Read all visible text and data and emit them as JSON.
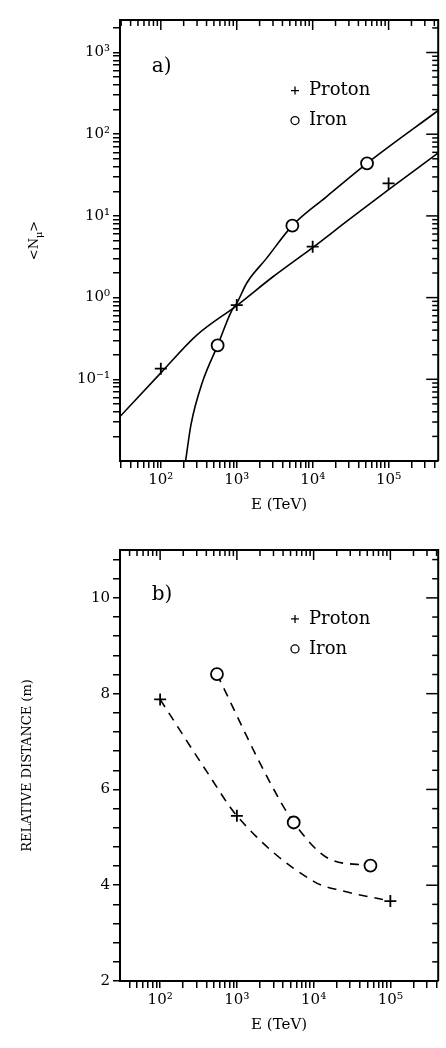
{
  "chart_data": [
    {
      "type": "scatter",
      "xlabel": "E (TeV)",
      "ylabel": "<N$_{μ}$>",
      "annotations": [
        "a)"
      ],
      "log": "xy",
      "grid": false,
      "legend": "top right",
      "xlim": [
        29,
        450000
      ],
      "ylim": [
        0.01,
        2500
      ],
      "xticks": [
        {
          "value": 30,
          "label": null
        },
        {
          "value": 40,
          "label": null
        },
        {
          "value": 50,
          "label": null
        },
        {
          "value": 60,
          "label": null
        },
        {
          "value": 70,
          "label": null
        },
        {
          "value": 80,
          "label": null
        },
        {
          "value": 90,
          "label": null
        },
        {
          "value": 100,
          "label": "10²"
        },
        {
          "value": 200,
          "label": null
        },
        {
          "value": 300,
          "label": null
        },
        {
          "value": 400,
          "label": null
        },
        {
          "value": 500,
          "label": null
        },
        {
          "value": 600,
          "label": null
        },
        {
          "value": 700,
          "label": null
        },
        {
          "value": 800,
          "label": null
        },
        {
          "value": 900,
          "label": null
        },
        {
          "value": 1000,
          "label": "10³"
        },
        {
          "value": 2000,
          "label": null
        },
        {
          "value": 3000,
          "label": null
        },
        {
          "value": 4000,
          "label": null
        },
        {
          "value": 5000,
          "label": null
        },
        {
          "value": 6000,
          "label": null
        },
        {
          "value": 7000,
          "label": null
        },
        {
          "value": 8000,
          "label": null
        },
        {
          "value": 9000,
          "label": null
        },
        {
          "value": 10000,
          "label": "10⁴"
        },
        {
          "value": 20000,
          "label": null
        },
        {
          "value": 30000,
          "label": null
        },
        {
          "value": 40000,
          "label": null
        },
        {
          "value": 50000,
          "label": null
        },
        {
          "value": 60000,
          "label": null
        },
        {
          "value": 70000,
          "label": null
        },
        {
          "value": 80000,
          "label": null
        },
        {
          "value": 90000,
          "label": null
        },
        {
          "value": 100000,
          "label": "10⁵"
        },
        {
          "value": 200000,
          "label": null
        },
        {
          "value": 300000,
          "label": null
        },
        {
          "value": 400000,
          "label": null
        }
      ],
      "yticks": [
        {
          "value": 0.02,
          "label": null
        },
        {
          "value": 0.03,
          "label": null
        },
        {
          "value": 0.04,
          "label": null
        },
        {
          "value": 0.05,
          "label": null
        },
        {
          "value": 0.06,
          "label": null
        },
        {
          "value": 0.07,
          "label": null
        },
        {
          "value": 0.08,
          "label": null
        },
        {
          "value": 0.09,
          "label": null
        },
        {
          "value": 0.1,
          "label": "10⁻¹"
        },
        {
          "value": 0.2,
          "label": null
        },
        {
          "value": 0.3,
          "label": null
        },
        {
          "value": 0.4,
          "label": null
        },
        {
          "value": 0.5,
          "label": null
        },
        {
          "value": 0.6,
          "label": null
        },
        {
          "value": 0.7,
          "label": null
        },
        {
          "value": 0.8,
          "label": null
        },
        {
          "value": 0.9,
          "label": null
        },
        {
          "value": 1,
          "label": "10⁰"
        },
        {
          "value": 2,
          "label": null
        },
        {
          "value": 3,
          "label": null
        },
        {
          "value": 4,
          "label": null
        },
        {
          "value": 5,
          "label": null
        },
        {
          "value": 6,
          "label": null
        },
        {
          "value": 7,
          "label": null
        },
        {
          "value": 8,
          "label": null
        },
        {
          "value": 9,
          "label": null
        },
        {
          "value": 10,
          "label": "10¹"
        },
        {
          "value": 20,
          "label": null
        },
        {
          "value": 30,
          "label": null
        },
        {
          "value": 40,
          "label": null
        },
        {
          "value": 50,
          "label": null
        },
        {
          "value": 60,
          "label": null
        },
        {
          "value": 70,
          "label": null
        },
        {
          "value": 80,
          "label": null
        },
        {
          "value": 90,
          "label": null
        },
        {
          "value": 100,
          "label": "10²"
        },
        {
          "value": 200,
          "label": null
        },
        {
          "value": 300,
          "label": null
        },
        {
          "value": 400,
          "label": null
        },
        {
          "value": 500,
          "label": null
        },
        {
          "value": 600,
          "label": null
        },
        {
          "value": 700,
          "label": null
        },
        {
          "value": 800,
          "label": null
        },
        {
          "value": 900,
          "label": null
        },
        {
          "value": 1000,
          "label": "10³"
        },
        {
          "value": 2000,
          "label": null
        }
      ],
      "series": [
        {
          "name": "Proton",
          "marker": "cross",
          "color": "#000000",
          "x": [
            100,
            1000,
            10000,
            100000
          ],
          "values": [
            0.135,
            0.81,
            4.2,
            25
          ]
        },
        {
          "name": "Iron",
          "marker": "circle",
          "color": "#000000",
          "x": [
            560,
            5400,
            52000
          ],
          "values": [
            0.26,
            7.6,
            44
          ]
        },
        {
          "type": "line",
          "marker": "none",
          "line_style": "solid",
          "color": "#000000",
          "x": [
            29,
            100,
            300,
            1000,
            3000,
            10000,
            30000,
            100000,
            450000
          ],
          "values": [
            0.035,
            0.12,
            0.35,
            0.8,
            1.8,
            4.1,
            9,
            21,
            59
          ]
        },
        {
          "type": "line",
          "marker": "none",
          "line_style": "solid",
          "color": "#000000",
          "x": [
            212,
            250,
            350,
            560,
            850,
            1000,
            1350,
            2450,
            5400,
            15000,
            52000,
            450000
          ],
          "values": [
            0.01,
            0.028,
            0.09,
            0.26,
            0.68,
            0.85,
            1.5,
            3,
            7.6,
            17,
            44,
            195
          ]
        }
      ]
    },
    {
      "type": "scatter",
      "xlabel": "E (TeV)",
      "ylabel": "RELATIVE DISTANCE (m)",
      "annotations": [
        "b)"
      ],
      "log": "x",
      "grid": false,
      "legend": "top right",
      "xlim": [
        30,
        420000
      ],
      "ylim": [
        2,
        11
      ],
      "xticks": [
        {
          "value": 40,
          "label": null
        },
        {
          "value": 50,
          "label": null
        },
        {
          "value": 60,
          "label": null
        },
        {
          "value": 70,
          "label": null
        },
        {
          "value": 80,
          "label": null
        },
        {
          "value": 90,
          "label": null
        },
        {
          "value": 100,
          "label": "10²"
        },
        {
          "value": 200,
          "label": null
        },
        {
          "value": 300,
          "label": null
        },
        {
          "value": 400,
          "label": null
        },
        {
          "value": 500,
          "label": null
        },
        {
          "value": 600,
          "label": null
        },
        {
          "value": 700,
          "label": null
        },
        {
          "value": 800,
          "label": null
        },
        {
          "value": 900,
          "label": null
        },
        {
          "value": 1000,
          "label": "10³"
        },
        {
          "value": 2000,
          "label": null
        },
        {
          "value": 3000,
          "label": null
        },
        {
          "value": 4000,
          "label": null
        },
        {
          "value": 5000,
          "label": null
        },
        {
          "value": 6000,
          "label": null
        },
        {
          "value": 7000,
          "label": null
        },
        {
          "value": 8000,
          "label": null
        },
        {
          "value": 9000,
          "label": null
        },
        {
          "value": 10000,
          "label": "10⁴"
        },
        {
          "value": 20000,
          "label": null
        },
        {
          "value": 30000,
          "label": null
        },
        {
          "value": 40000,
          "label": null
        },
        {
          "value": 50000,
          "label": null
        },
        {
          "value": 60000,
          "label": null
        },
        {
          "value": 70000,
          "label": null
        },
        {
          "value": 80000,
          "label": null
        },
        {
          "value": 90000,
          "label": null
        },
        {
          "value": 100000,
          "label": "10⁵"
        },
        {
          "value": 200000,
          "label": null
        },
        {
          "value": 300000,
          "label": null
        },
        {
          "value": 400000,
          "label": null
        }
      ],
      "yticks": [
        2,
        {
          "value": 2.4,
          "label": null
        },
        {
          "value": 2.8,
          "label": null
        },
        {
          "value": 3.2,
          "label": null
        },
        {
          "value": 3.6,
          "label": null
        },
        4,
        {
          "value": 4.4,
          "label": null
        },
        {
          "value": 4.8,
          "label": null
        },
        {
          "value": 5.2,
          "label": null
        },
        {
          "value": 5.6,
          "label": null
        },
        6,
        {
          "value": 6.4,
          "label": null
        },
        {
          "value": 6.8,
          "label": null
        },
        {
          "value": 7.2,
          "label": null
        },
        {
          "value": 7.6,
          "label": null
        },
        8,
        {
          "value": 8.4,
          "label": null
        },
        {
          "value": 8.8,
          "label": null
        },
        {
          "value": 9.2,
          "label": null
        },
        {
          "value": 9.6,
          "label": null
        },
        10,
        {
          "value": 10.4,
          "label": null
        },
        {
          "value": 10.8,
          "label": null
        }
      ],
      "series": [
        {
          "name": "Proton",
          "marker": "cross",
          "color": "#000000",
          "x": [
            100,
            1000,
            100000
          ],
          "values": [
            7.88,
            5.45,
            3.67
          ]
        },
        {
          "name": "Iron",
          "marker": "circle",
          "color": "#000000",
          "x": [
            550,
            5500,
            55000
          ],
          "values": [
            8.41,
            5.31,
            4.41
          ]
        },
        {
          "type": "line",
          "marker": "none",
          "line_style": "dashed",
          "color": "#000000",
          "x": [
            100,
            430,
            1000,
            10000,
            24000,
            80000
          ],
          "values": [
            7.88,
            6.31,
            5.45,
            4.08,
            3.88,
            3.7
          ]
        },
        {
          "type": "line",
          "marker": "none",
          "line_style": "dashed",
          "color": "#000000",
          "x": [
            550,
            2500,
            5500,
            16000,
            45000
          ],
          "values": [
            8.41,
            6.25,
            5.31,
            4.55,
            4.42
          ]
        }
      ]
    }
  ]
}
